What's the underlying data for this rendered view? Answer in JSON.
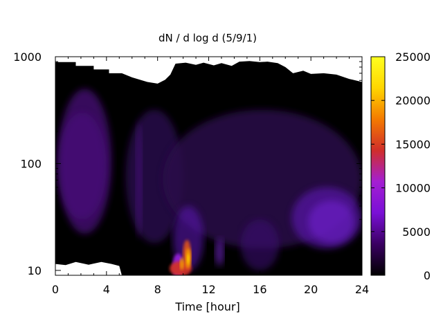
{
  "chart_data": {
    "type": "heatmap",
    "title": "dN / d log d (5/9/1)",
    "xlabel": "Time [hour]",
    "ylabel": "",
    "xlim": [
      0,
      24
    ],
    "ylim": [
      9,
      1000
    ],
    "y_scale": "log",
    "x_ticks": [
      0,
      4,
      8,
      12,
      16,
      20,
      24
    ],
    "x_tick_labels": [
      "0",
      "4",
      "8",
      "12",
      "16",
      "20",
      "24"
    ],
    "y_ticks": [
      10,
      100,
      1000
    ],
    "y_tick_labels": [
      "10",
      "100",
      "1000"
    ],
    "colorbar": {
      "min": 0,
      "max": 25000,
      "ticks": [
        0,
        5000,
        10000,
        15000,
        20000,
        25000
      ],
      "tick_labels": [
        "0",
        "5000",
        "10000",
        "15000",
        "20000",
        "25000"
      ],
      "palette": [
        "#000000",
        "#3a0062",
        "#7a10d6",
        "#a41fd2",
        "#d02e2a",
        "#f47a00",
        "#ffd600",
        "#ffff20"
      ]
    },
    "hotspots": [
      {
        "x_hour": 9.9,
        "y_diameter": 12,
        "value": 19000
      },
      {
        "x_hour": 10.3,
        "y_diameter": 14,
        "value": 18000
      },
      {
        "x_hour": 1.2,
        "y_diameter": 120,
        "value": 2500
      },
      {
        "x_hour": 21.5,
        "y_diameter": 28,
        "value": 4500
      },
      {
        "x_hour": 12.8,
        "y_diameter": 16,
        "value": 4000
      },
      {
        "x_hour": 6.5,
        "y_diameter": 60,
        "value": 1500
      }
    ],
    "grid": false
  }
}
